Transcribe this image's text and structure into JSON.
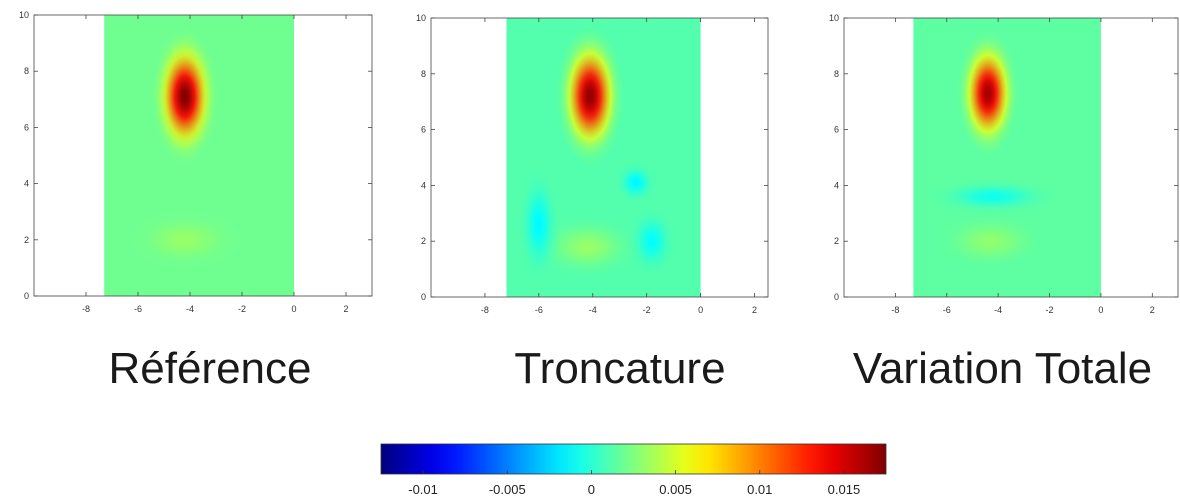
{
  "chart_data": [
    {
      "type": "heatmap",
      "title": "Référence",
      "xlim": [
        -10,
        3
      ],
      "ylim": [
        0,
        10
      ],
      "x_ticks": [
        "-8",
        "-6",
        "-4",
        "-2",
        "0",
        "2"
      ],
      "y_ticks": [
        "0",
        "2",
        "4",
        "6",
        "8",
        "10"
      ],
      "data_extent_x": [
        -7.3,
        0
      ],
      "background_value": 0.002,
      "blobs": [
        {
          "cx": -4.2,
          "cy": 7.1,
          "rx": 0.95,
          "ry": 1.8,
          "peak": 0.0175
        },
        {
          "cx": -4.2,
          "cy": 2.0,
          "rx": 1.7,
          "ry": 0.8,
          "peak": 0.0032
        }
      ]
    },
    {
      "type": "heatmap",
      "title": "Troncature",
      "xlim": [
        -10,
        2.5
      ],
      "ylim": [
        0,
        10
      ],
      "x_ticks": [
        "-8",
        "-6",
        "-4",
        "-2",
        "0",
        "2"
      ],
      "y_ticks": [
        "0",
        "2",
        "4",
        "6",
        "8",
        "10"
      ],
      "data_extent_x": [
        -7.2,
        0
      ],
      "background_value": 0.0012,
      "blobs": [
        {
          "cx": -4.1,
          "cy": 7.2,
          "rx": 0.95,
          "ry": 1.9,
          "peak": 0.017
        },
        {
          "cx": -4.2,
          "cy": 1.8,
          "rx": 1.6,
          "ry": 0.9,
          "peak": 0.0032
        },
        {
          "cx": -2.4,
          "cy": 4.1,
          "rx": 0.6,
          "ry": 0.6,
          "peak": -0.0015
        },
        {
          "cx": -6.0,
          "cy": 2.6,
          "rx": 0.6,
          "ry": 1.6,
          "peak": -0.0014
        },
        {
          "cx": -1.8,
          "cy": 2.0,
          "rx": 0.7,
          "ry": 1.0,
          "peak": -0.0012
        }
      ]
    },
    {
      "type": "heatmap",
      "title": "Variation Totale",
      "xlim": [
        -10,
        3
      ],
      "ylim": [
        0,
        10
      ],
      "x_ticks": [
        "-8",
        "-6",
        "-4",
        "-2",
        "0",
        "2"
      ],
      "y_ticks": [
        "0",
        "2",
        "4",
        "6",
        "8",
        "10"
      ],
      "data_extent_x": [
        -7.3,
        0
      ],
      "background_value": 0.0015,
      "blobs": [
        {
          "cx": -4.4,
          "cy": 7.3,
          "rx": 0.9,
          "ry": 1.7,
          "peak": 0.0165
        },
        {
          "cx": -4.3,
          "cy": 2.0,
          "rx": 1.7,
          "ry": 0.8,
          "peak": 0.003
        },
        {
          "cx": -4.2,
          "cy": 3.6,
          "rx": 2.0,
          "ry": 0.5,
          "peak": -0.0008
        }
      ]
    }
  ],
  "colorbar": {
    "min": -0.0125,
    "max": 0.0175,
    "tick_values": [
      -0.01,
      -0.005,
      0,
      0.005,
      0.01,
      0.015
    ],
    "tick_labels": [
      "-0.01",
      "-0.005",
      "0",
      "0.005",
      "0.01",
      "0.015"
    ],
    "colormap": "jet"
  }
}
